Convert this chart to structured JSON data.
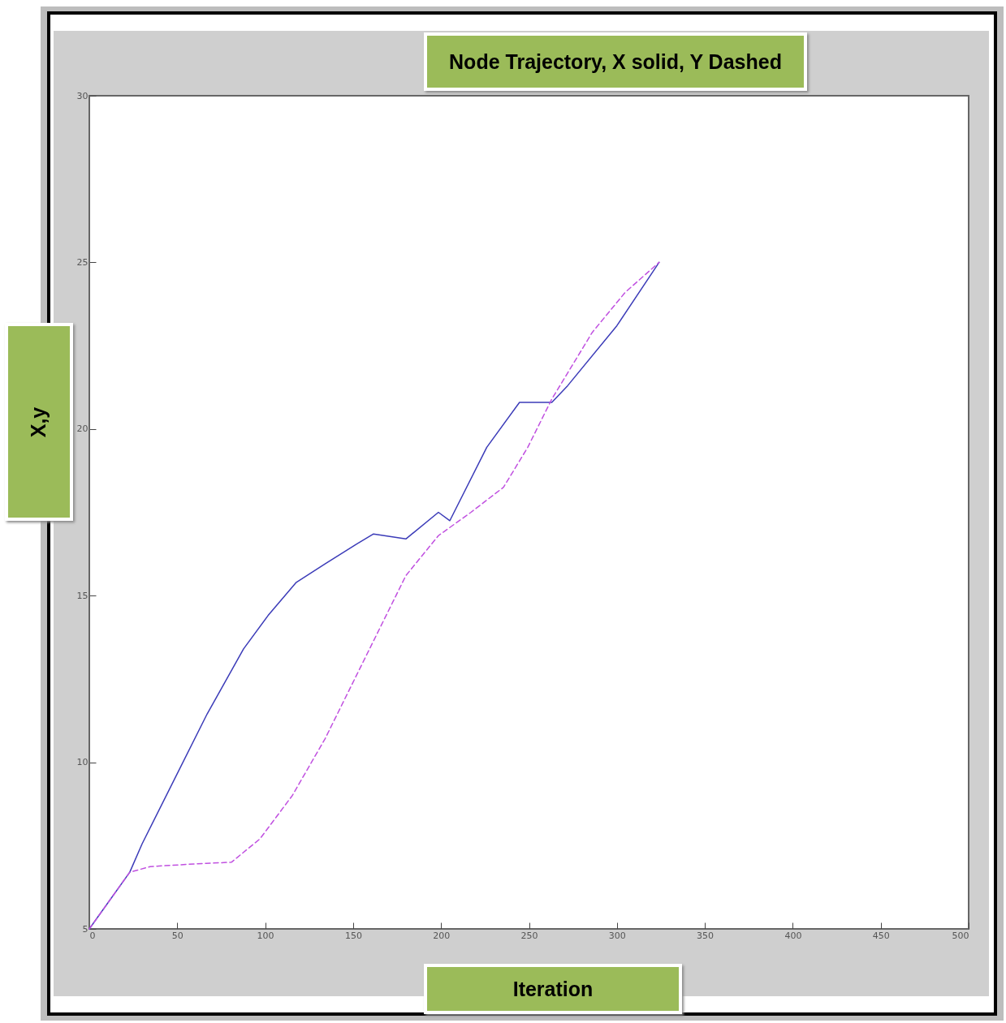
{
  "chart_data": {
    "type": "line",
    "title": "Node Trajectory, X solid, Y Dashed",
    "xlabel": "Iteration",
    "ylabel": "X,y",
    "xlim": [
      0,
      500
    ],
    "xticks": [
      0,
      50,
      100,
      150,
      200,
      250,
      300,
      350,
      400,
      450,
      500
    ],
    "ylim": [
      5,
      30
    ],
    "yticks": [
      5,
      10,
      15,
      20,
      25,
      30
    ],
    "grid": false,
    "legend": false,
    "series": [
      {
        "color": "#3b3bb8",
        "line_style": "solid",
        "x": [
          0,
          23,
          30,
          48.5,
          67,
          87.7,
          101.6,
          117.7,
          134,
          152,
          161.6,
          180,
          198.5,
          205,
          226,
          244.6,
          263,
          272,
          300,
          324
        ],
        "values": [
          5,
          6.7,
          7.55,
          9.5,
          11.45,
          13.4,
          14.4,
          15.4,
          15.95,
          16.55,
          16.85,
          16.7,
          17.5,
          17.25,
          19.45,
          20.8,
          20.8,
          21.3,
          23.1,
          25
        ]
      },
      {
        "color": "#c050e0",
        "line_style": "dashed",
        "x": [
          0,
          23,
          34.6,
          60,
          80.8,
          97,
          115.4,
          134,
          157,
          180,
          198.5,
          217,
          235.5,
          249.3,
          263,
          286,
          304.7,
          324
        ],
        "values": [
          5,
          6.7,
          6.87,
          6.95,
          7,
          7.7,
          9,
          10.7,
          13.15,
          15.6,
          16.8,
          17.5,
          18.25,
          19.45,
          20.9,
          22.9,
          24.1,
          25
        ]
      }
    ]
  }
}
